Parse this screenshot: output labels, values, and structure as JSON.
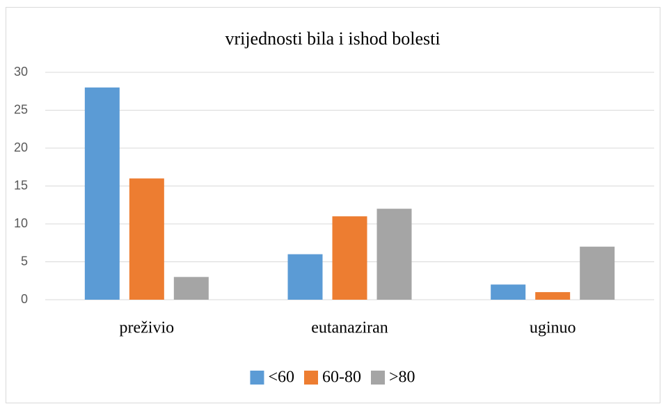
{
  "chart_data": {
    "type": "bar",
    "title": "vrijednosti bila i ishod bolesti",
    "categories": [
      "preživio",
      "eutanaziran",
      "uginuo"
    ],
    "series": [
      {
        "name": "<60",
        "color": "#5b9bd5",
        "values": [
          28,
          6,
          2
        ]
      },
      {
        "name": "60-80",
        "color": "#ed7d31",
        "values": [
          16,
          11,
          1
        ]
      },
      {
        "name": ">80",
        "color": "#a5a5a5",
        "values": [
          3,
          12,
          7
        ]
      }
    ],
    "ylim": [
      0,
      30
    ],
    "yticks": [
      0,
      5,
      10,
      15,
      20,
      25,
      30
    ],
    "grid": true,
    "legend": "bottom"
  }
}
